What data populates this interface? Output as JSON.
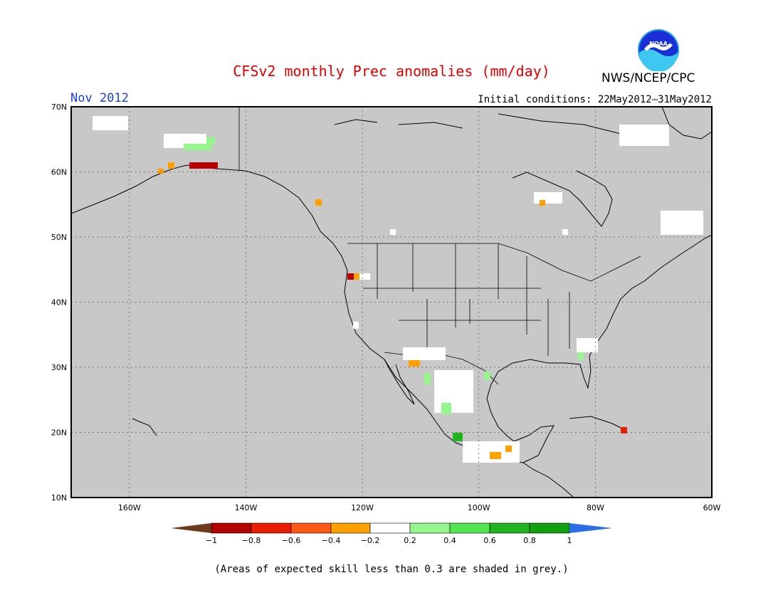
{
  "header": {
    "title": "CFSv2 monthly Prec anomalies (mm/day)",
    "agency": "NWS/NCEP/CPC",
    "logo_text": "NOAA",
    "month": "Nov 2012",
    "initial_conditions": "Initial conditions: 22May2012–31May2012"
  },
  "map": {
    "lon_range": [
      -170,
      -60
    ],
    "lat_range": [
      10,
      70
    ],
    "lat_ticks": [
      "70N",
      "60N",
      "50N",
      "40N",
      "30N",
      "20N",
      "10N"
    ],
    "lon_ticks": [
      "160W",
      "140W",
      "120W",
      "100W",
      "80W",
      "60W"
    ],
    "ocean_fill": "#c8c8c8",
    "grid": true
  },
  "legend": {
    "labels": [
      "−1",
      "−0.8",
      "−0.6",
      "−0.4",
      "−0.2",
      "0.2",
      "0.4",
      "0.6",
      "0.8",
      "1"
    ],
    "colors": [
      "#6e3a1e",
      "#b40000",
      "#e81e00",
      "#ff5a14",
      "#ffa000",
      "#ffffff",
      "#96f58c",
      "#50e650",
      "#20b420",
      "#10a010",
      "#2d6ee6"
    ]
  },
  "footnote": "(Areas of expected skill less than 0.3 are shaded in grey.)"
}
